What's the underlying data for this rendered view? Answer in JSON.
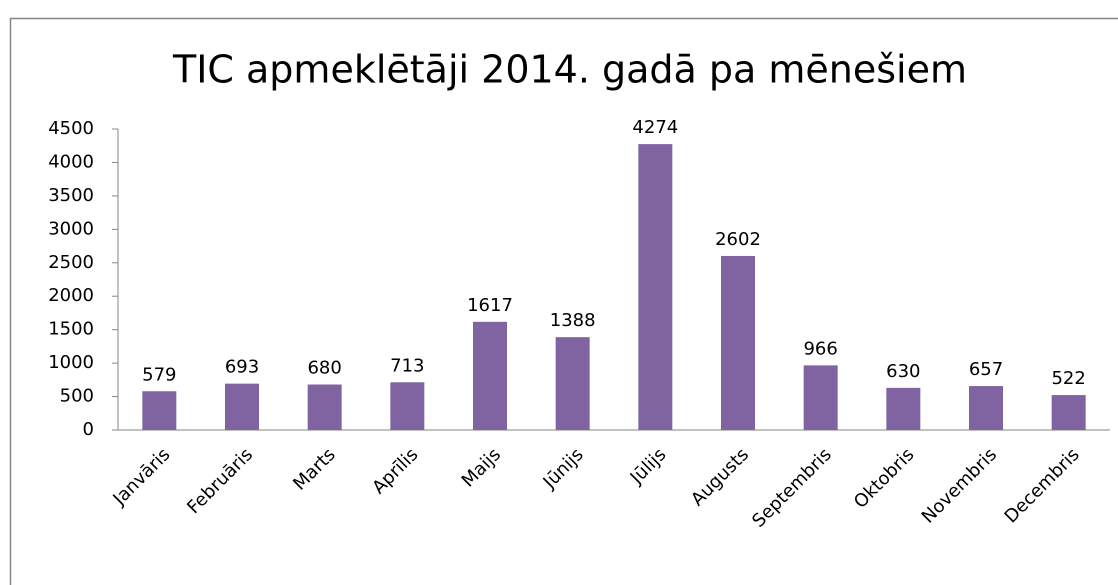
{
  "chart_data": {
    "type": "bar",
    "title": "TIC apmeklētāji 2014. gadā pa mēnešiem",
    "categories": [
      "Janvāris",
      "Februāris",
      "Marts",
      "Aprīlis",
      "Maijs",
      "Jūnijs",
      "Jūlijs",
      "Augusts",
      "Septembris",
      "Oktobris",
      "Novembris",
      "Decembris"
    ],
    "values": [
      579,
      693,
      680,
      713,
      1617,
      1388,
      4274,
      2602,
      966,
      630,
      657,
      522
    ],
    "color": "#8064a2",
    "ylim": [
      0,
      4500
    ],
    "yticks": [
      0,
      500,
      1000,
      1500,
      2000,
      2500,
      3000,
      3500,
      4000,
      4500
    ],
    "grid": false
  }
}
